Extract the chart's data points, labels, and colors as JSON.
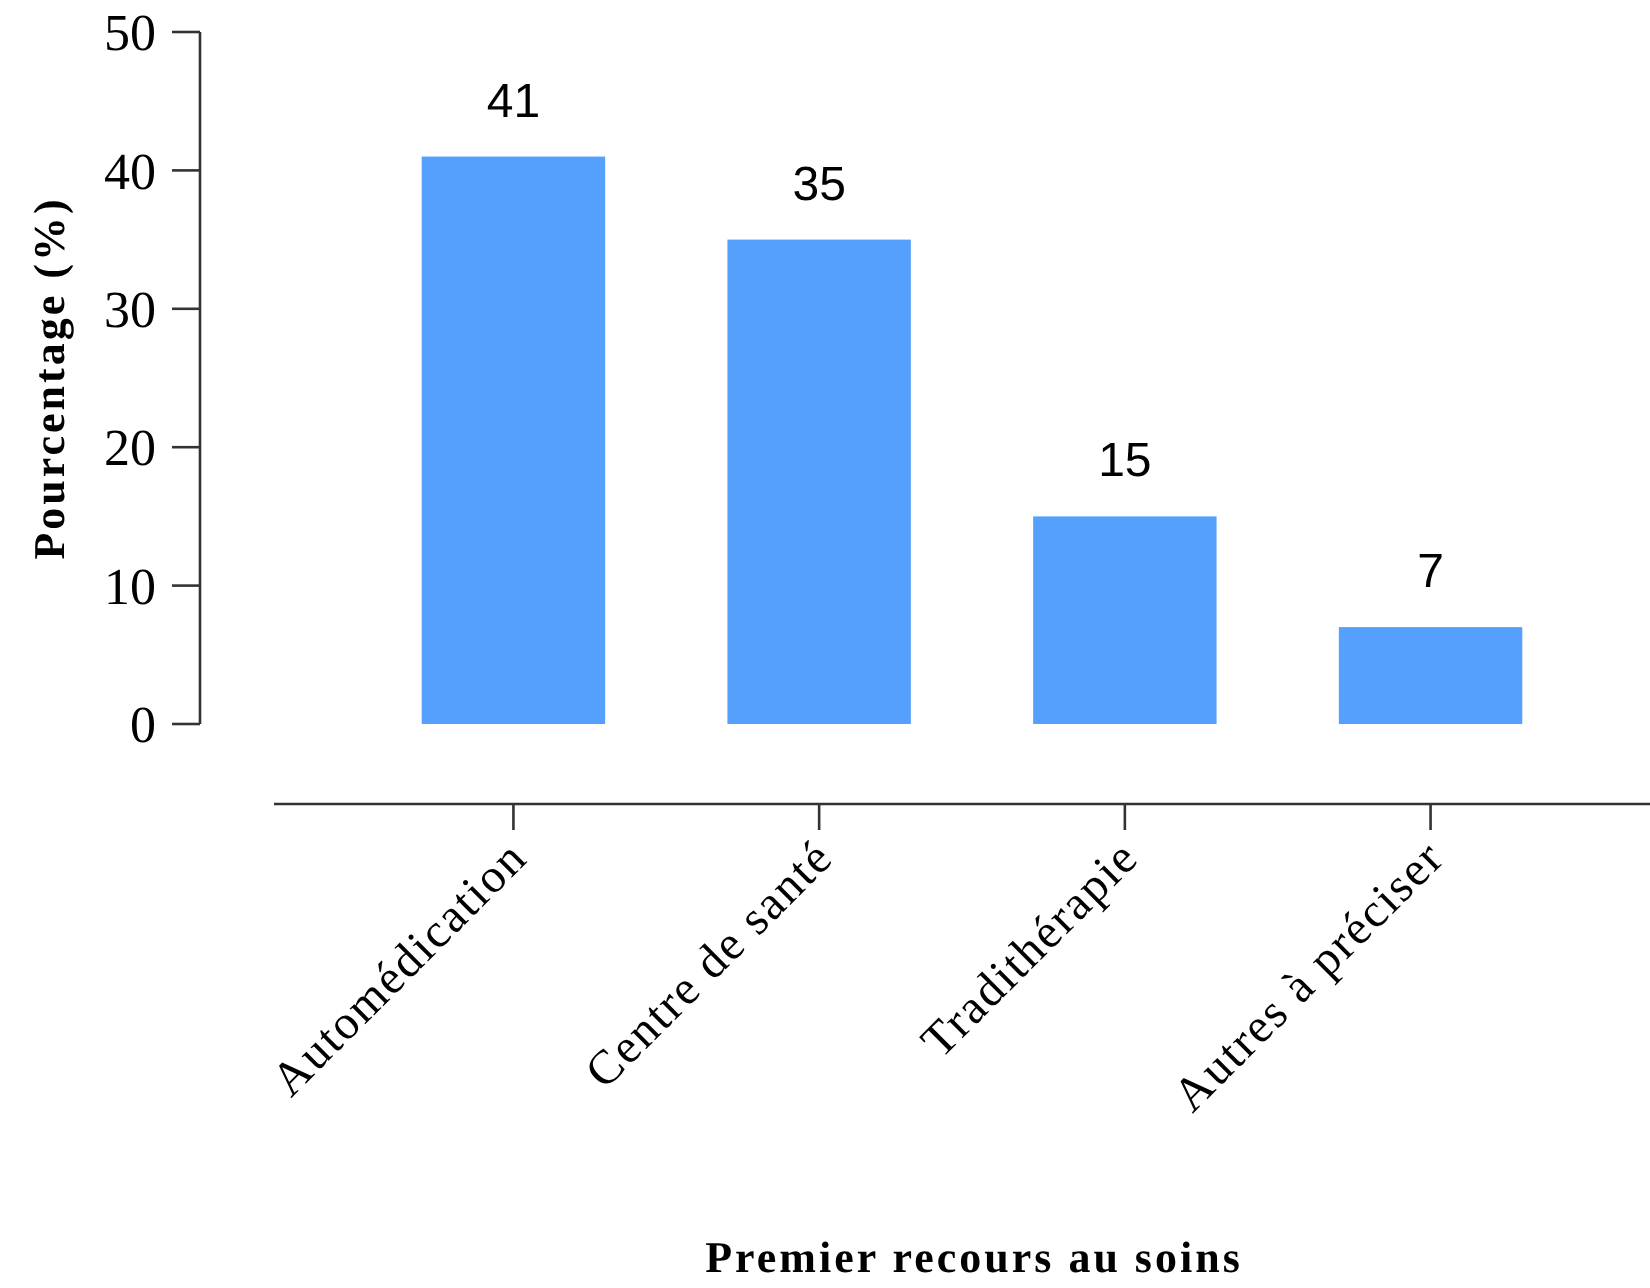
{
  "chart_data": {
    "type": "bar",
    "xlabel": "Premier recours au soins",
    "ylabel": "Pourcentage (%)",
    "categories": [
      "Automédication",
      "Centre de santé",
      "Tradithérapie",
      "Autres à préciser"
    ],
    "values": [
      41,
      35,
      15,
      7
    ],
    "color": "#559ffd",
    "ylim": [
      0,
      50
    ],
    "yticks": [
      0,
      10,
      20,
      30,
      40,
      50
    ],
    "grid": false,
    "data_labels": true
  }
}
